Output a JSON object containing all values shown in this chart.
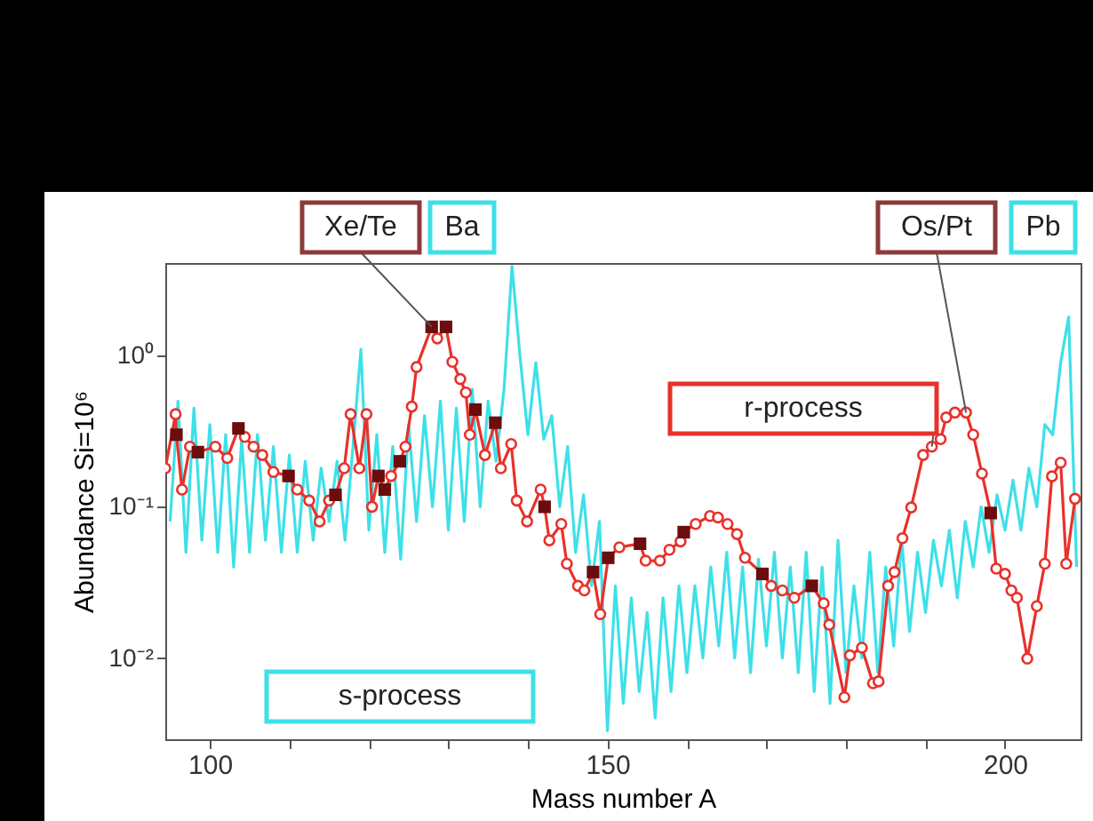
{
  "chart_data": {
    "type": "line",
    "xlabel": "Mass number A",
    "ylabel": "Abundance Si=10⁶",
    "xlim": [
      94.4,
      209.5
    ],
    "xticks": [
      100,
      {
        "value": 110,
        "label": null
      },
      {
        "value": 120,
        "label": null
      },
      {
        "value": 130,
        "label": null
      },
      {
        "value": 140,
        "label": null
      },
      150,
      {
        "value": 160,
        "label": null
      },
      {
        "value": 170,
        "label": null
      },
      {
        "value": 180,
        "label": null
      },
      {
        "value": 190,
        "label": null
      },
      200
    ],
    "ylim": [
      0.0029,
      4.1
    ],
    "log": true,
    "yticks": [
      {
        "value": 0.01,
        "label": "10⁻²"
      },
      {
        "value": 0.1,
        "label": "10⁻¹"
      },
      {
        "value": 1,
        "label": "10⁰"
      }
    ],
    "series": [
      {
        "name": "s-process",
        "color": "#3ee0e8",
        "x": [
          95,
          96,
          97,
          98,
          99,
          100,
          101,
          102,
          103,
          104,
          105,
          106,
          107,
          108,
          109,
          110,
          111,
          112,
          113,
          114,
          115,
          116,
          117,
          118,
          119,
          120,
          121,
          122,
          123,
          124,
          125,
          126,
          127,
          128,
          129,
          130,
          131,
          132,
          133,
          134,
          135,
          136,
          137,
          138,
          139,
          140,
          141,
          142,
          143,
          144,
          145,
          146,
          147,
          148,
          149,
          150,
          151,
          152,
          153,
          154,
          155,
          156,
          157,
          158,
          159,
          160,
          161,
          162,
          163,
          164,
          165,
          166,
          167,
          168,
          169,
          170,
          171,
          172,
          173,
          174,
          175,
          176,
          177,
          178,
          179,
          180,
          181,
          182,
          183,
          184,
          185,
          186,
          187,
          188,
          189,
          190,
          191,
          192,
          193,
          194,
          195,
          196,
          197,
          198,
          199,
          200,
          201,
          202,
          203,
          204,
          205,
          206,
          207,
          208,
          209
        ],
        "values": [
          0.08,
          0.5,
          0.05,
          0.45,
          0.06,
          0.35,
          0.05,
          0.3,
          0.04,
          0.28,
          0.05,
          0.3,
          0.06,
          0.25,
          0.05,
          0.22,
          0.05,
          0.2,
          0.06,
          0.18,
          0.08,
          0.2,
          0.06,
          0.25,
          1.1,
          0.07,
          0.3,
          0.05,
          0.25,
          0.045,
          0.35,
          0.08,
          0.4,
          0.1,
          0.5,
          0.07,
          0.45,
          0.08,
          0.6,
          0.1,
          0.5,
          0.2,
          0.6,
          3.9,
          1.0,
          0.3,
          0.9,
          0.28,
          0.4,
          0.1,
          0.25,
          0.05,
          0.12,
          0.03,
          0.08,
          0.0033,
          0.03,
          0.005,
          0.025,
          0.006,
          0.02,
          0.004,
          0.025,
          0.006,
          0.03,
          0.008,
          0.03,
          0.01,
          0.04,
          0.012,
          0.05,
          0.01,
          0.04,
          0.008,
          0.045,
          0.012,
          0.05,
          0.01,
          0.04,
          0.008,
          0.05,
          0.006,
          0.04,
          0.005,
          0.06,
          0.008,
          0.03,
          0.01,
          0.05,
          0.008,
          0.04,
          0.012,
          0.06,
          0.015,
          0.05,
          0.02,
          0.06,
          0.03,
          0.07,
          0.025,
          0.08,
          0.04,
          0.1,
          0.05,
          0.12,
          0.07,
          0.15,
          0.07,
          0.18,
          0.1,
          0.35,
          0.3,
          0.9,
          1.8,
          0.04
        ]
      },
      {
        "name": "r-process",
        "color": "#e8312a",
        "marker": "circle",
        "x": [
          94.4,
          95.7,
          95.8,
          96.5,
          97.5,
          98.5,
          100.7,
          102.2,
          103.6,
          104.4,
          105.5,
          106.6,
          108,
          109.9,
          111,
          112.5,
          113.8,
          115,
          115.8,
          116.9,
          117.7,
          118.8,
          119.7,
          120.4,
          121.2,
          122,
          122.8,
          123.9,
          124.6,
          125.4,
          126,
          127.9,
          128.6,
          129.7,
          130.5,
          131.5,
          132.2,
          132.7,
          133.4,
          134.6,
          135.9,
          136.6,
          137.9,
          138.6,
          139.9,
          141.6,
          142.1,
          142.7,
          144.2,
          144.9,
          146.3,
          147.1,
          148.2,
          149.1,
          150.1,
          151.5,
          154.1,
          154.8,
          156.6,
          157.8,
          159.2,
          159.6,
          161.1,
          162.9,
          163.9,
          165.1,
          166.3,
          167.3,
          169.5,
          170.6,
          172,
          173.5,
          175.7,
          177.2,
          177.9,
          179.8,
          180.5,
          182,
          183.4,
          184.1,
          185.3,
          186.1,
          187.1,
          188.2,
          189.7,
          190.8,
          191.9,
          192.6,
          193.7,
          195.1,
          196,
          197.1,
          198.2,
          198.9,
          200,
          200.8,
          201.5,
          202.8,
          204,
          205,
          205.9,
          207,
          207.7,
          208.8
        ],
        "values": [
          0.18,
          0.41,
          0.3,
          0.13,
          0.25,
          0.23,
          0.25,
          0.21,
          0.33,
          0.29,
          0.25,
          0.22,
          0.17,
          0.16,
          0.13,
          0.11,
          0.08,
          0.11,
          0.12,
          0.18,
          0.41,
          0.18,
          0.41,
          0.1,
          0.16,
          0.13,
          0.16,
          0.2,
          0.25,
          0.46,
          0.84,
          1.55,
          1.3,
          1.55,
          0.91,
          0.7,
          0.57,
          0.3,
          0.44,
          0.22,
          0.36,
          0.18,
          0.26,
          0.11,
          0.08,
          0.13,
          0.1,
          0.06,
          0.077,
          0.042,
          0.03,
          0.028,
          0.037,
          0.0195,
          0.046,
          0.054,
          0.057,
          0.044,
          0.044,
          0.052,
          0.059,
          0.068,
          0.077,
          0.087,
          0.085,
          0.077,
          0.066,
          0.046,
          0.036,
          0.03,
          0.028,
          0.025,
          0.03,
          0.023,
          0.0166,
          0.0055,
          0.0104,
          0.0117,
          0.0068,
          0.007,
          0.03,
          0.037,
          0.062,
          0.099,
          0.22,
          0.25,
          0.28,
          0.39,
          0.42,
          0.42,
          0.3,
          0.166,
          0.091,
          0.039,
          0.036,
          0.028,
          0.025,
          0.0099,
          0.022,
          0.042,
          0.159,
          0.196,
          0.042,
          0.113
        ]
      },
      {
        "type": "scatter",
        "color": "#6b0d0d",
        "marker": "square",
        "x": [
          95.8,
          98.5,
          103.6,
          109.9,
          115.8,
          121.2,
          122,
          123.9,
          127.9,
          129.7,
          133.4,
          135.9,
          142.1,
          148.2,
          150.1,
          154.1,
          159.6,
          169.5,
          175.7,
          198.2
        ],
        "values": [
          0.3,
          0.23,
          0.33,
          0.16,
          0.12,
          0.16,
          0.13,
          0.2,
          1.55,
          1.55,
          0.44,
          0.36,
          0.1,
          0.037,
          0.046,
          0.057,
          0.068,
          0.036,
          0.03,
          0.091
        ]
      }
    ],
    "annotations": [
      {
        "text": "Xe/Te",
        "x": 127.9,
        "y": 1.55
      },
      "Ba",
      {
        "text": "Os/Pt",
        "x": 195.1,
        "y": 0.42
      },
      "Pb"
    ]
  }
}
